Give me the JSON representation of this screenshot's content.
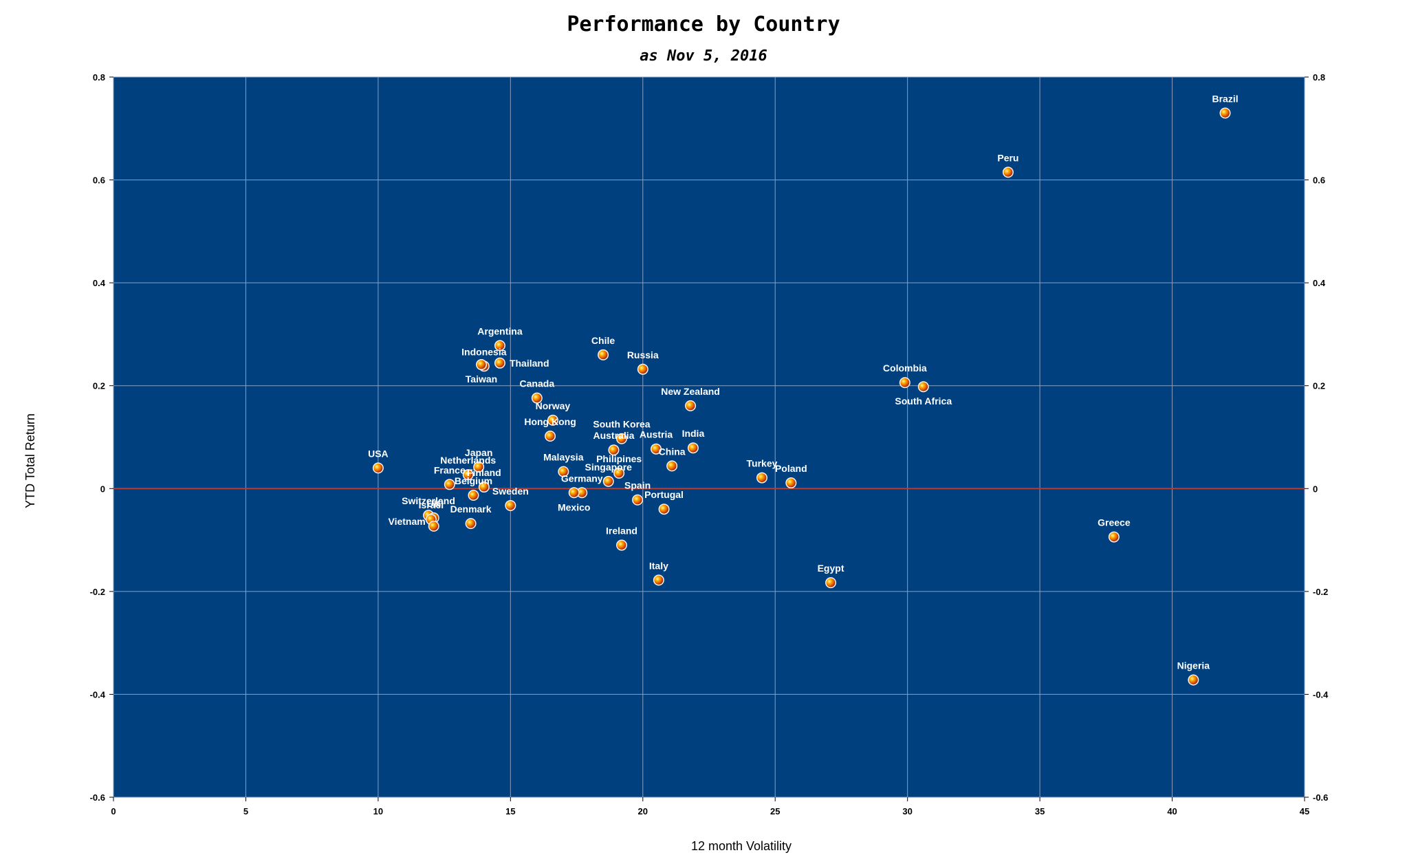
{
  "chart_data": {
    "type": "scatter",
    "title": "Performance by Country",
    "subtitle": "as Nov 5, 2016",
    "xlabel": "12 month Volatility",
    "ylabel": "YTD Total Return",
    "xlim": [
      0,
      45
    ],
    "ylim": [
      -0.6,
      0.8
    ],
    "x_ticks": [
      "0",
      "5",
      "10",
      "15",
      "20",
      "25",
      "30",
      "35",
      "40",
      "45"
    ],
    "y_ticks": [
      "-0.6",
      "-0.4",
      "-0.2",
      "0",
      "0.2",
      "0.4",
      "0.6",
      "0.8"
    ],
    "x_tick_values": [
      0,
      5,
      10,
      15,
      20,
      25,
      30,
      35,
      40,
      45
    ],
    "y_tick_values": [
      -0.6,
      -0.4,
      -0.2,
      0,
      0.2,
      0.4,
      0.6,
      0.8
    ],
    "grid": true,
    "zero_line_color": "#c0392b",
    "plot_background": "#00407f",
    "grid_color": "#8c9fbf",
    "marker_color": "#ff8c00",
    "points": [
      {
        "label": "Brazil",
        "x": 42.0,
        "y": 0.73,
        "label_pos": "above"
      },
      {
        "label": "Peru",
        "x": 33.8,
        "y": 0.615,
        "label_pos": "above"
      },
      {
        "label": "Argentina",
        "x": 14.6,
        "y": 0.278,
        "label_pos": "above"
      },
      {
        "label": "Indonesia",
        "x": 14.0,
        "y": 0.238,
        "label_pos": "above"
      },
      {
        "label": "Taiwan",
        "x": 13.9,
        "y": 0.241,
        "label_pos": "below"
      },
      {
        "label": "Thailand",
        "x": 14.6,
        "y": 0.244,
        "label_pos": "right"
      },
      {
        "label": "Chile",
        "x": 18.5,
        "y": 0.26,
        "label_pos": "above"
      },
      {
        "label": "Russia",
        "x": 20.0,
        "y": 0.232,
        "label_pos": "above"
      },
      {
        "label": "Canada",
        "x": 16.0,
        "y": 0.176,
        "label_pos": "above"
      },
      {
        "label": "Colombia",
        "x": 29.9,
        "y": 0.206,
        "label_pos": "above"
      },
      {
        "label": "South Africa",
        "x": 30.6,
        "y": 0.198,
        "label_pos": "below"
      },
      {
        "label": "New Zealand",
        "x": 21.8,
        "y": 0.161,
        "label_pos": "above"
      },
      {
        "label": "Norway",
        "x": 16.6,
        "y": 0.133,
        "label_pos": "above"
      },
      {
        "label": "Hong Kong",
        "x": 16.5,
        "y": 0.102,
        "label_pos": "above"
      },
      {
        "label": "South Korea",
        "x": 19.2,
        "y": 0.097,
        "label_pos": "above"
      },
      {
        "label": "Australia",
        "x": 18.9,
        "y": 0.075,
        "label_pos": "above"
      },
      {
        "label": "Austria",
        "x": 20.5,
        "y": 0.077,
        "label_pos": "above"
      },
      {
        "label": "India",
        "x": 21.9,
        "y": 0.079,
        "label_pos": "above"
      },
      {
        "label": "China",
        "x": 21.1,
        "y": 0.044,
        "label_pos": "above"
      },
      {
        "label": "USA",
        "x": 10.0,
        "y": 0.04,
        "label_pos": "above"
      },
      {
        "label": "Japan",
        "x": 13.8,
        "y": 0.042,
        "label_pos": "above"
      },
      {
        "label": "Netherlands",
        "x": 13.4,
        "y": 0.027,
        "label_pos": "above"
      },
      {
        "label": "France",
        "x": 12.7,
        "y": 0.008,
        "label_pos": "above"
      },
      {
        "label": "Finland",
        "x": 14.0,
        "y": 0.003,
        "label_pos": "above"
      },
      {
        "label": "Belgium",
        "x": 13.6,
        "y": -0.013,
        "label_pos": "above"
      },
      {
        "label": "Malaysia",
        "x": 17.0,
        "y": 0.033,
        "label_pos": "above"
      },
      {
        "label": "Philipines",
        "x": 19.1,
        "y": 0.03,
        "label_pos": "above"
      },
      {
        "label": "Singapore",
        "x": 18.7,
        "y": 0.014,
        "label_pos": "above"
      },
      {
        "label": "Germany",
        "x": 17.7,
        "y": -0.008,
        "label_pos": "above"
      },
      {
        "label": "Mexico",
        "x": 17.4,
        "y": -0.008,
        "label_pos": "below"
      },
      {
        "label": "Turkey",
        "x": 24.5,
        "y": 0.021,
        "label_pos": "above"
      },
      {
        "label": "Poland",
        "x": 25.6,
        "y": 0.011,
        "label_pos": "above"
      },
      {
        "label": "Sweden",
        "x": 15.0,
        "y": -0.033,
        "label_pos": "above"
      },
      {
        "label": "Spain",
        "x": 19.8,
        "y": -0.022,
        "label_pos": "above"
      },
      {
        "label": "Portugal",
        "x": 20.8,
        "y": -0.04,
        "label_pos": "above"
      },
      {
        "label": "Switzerland",
        "x": 11.9,
        "y": -0.052,
        "label_pos": "above"
      },
      {
        "label": "UK",
        "x": 12.1,
        "y": -0.057,
        "label_pos": "above"
      },
      {
        "label": "Israel",
        "x": 12.0,
        "y": -0.06,
        "label_pos": "above"
      },
      {
        "label": "Vietnam",
        "x": 12.1,
        "y": -0.073,
        "label_pos": "left"
      },
      {
        "label": "Denmark",
        "x": 13.5,
        "y": -0.068,
        "label_pos": "above"
      },
      {
        "label": "Ireland",
        "x": 19.2,
        "y": -0.11,
        "label_pos": "above"
      },
      {
        "label": "Italy",
        "x": 20.6,
        "y": -0.178,
        "label_pos": "above"
      },
      {
        "label": "Egypt",
        "x": 27.1,
        "y": -0.183,
        "label_pos": "above"
      },
      {
        "label": "Greece",
        "x": 37.8,
        "y": -0.094,
        "label_pos": "above"
      },
      {
        "label": "Nigeria",
        "x": 40.8,
        "y": -0.372,
        "label_pos": "above"
      }
    ]
  }
}
